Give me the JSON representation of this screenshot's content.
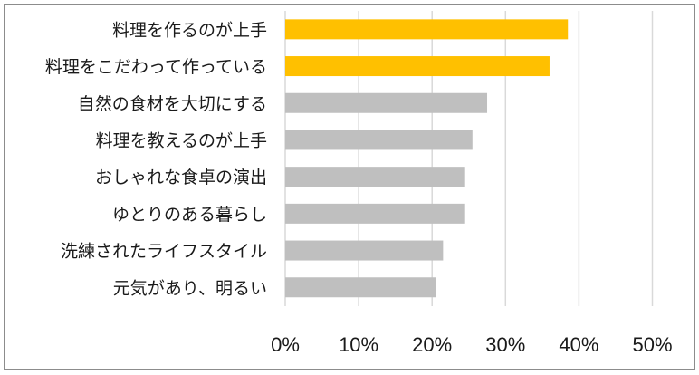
{
  "chart_data": {
    "type": "bar",
    "orientation": "horizontal",
    "categories": [
      "料理を作るのが上手",
      "料理をこだわって作っている",
      "自然の食材を大切にする",
      "料理を教えるのが上手",
      "おしゃれな食卓の演出",
      "ゆとりのある暮らし",
      "洗練されたライフスタイル",
      "元気があり、明るい"
    ],
    "values": [
      38.5,
      36.0,
      27.5,
      25.5,
      24.5,
      24.5,
      21.5,
      20.5
    ],
    "bar_colors": [
      "#ffc000",
      "#ffc000",
      "#bfbfbf",
      "#bfbfbf",
      "#bfbfbf",
      "#bfbfbf",
      "#bfbfbf",
      "#bfbfbf"
    ],
    "xlim": [
      0,
      50
    ],
    "xticks": [
      0,
      10,
      20,
      30,
      40,
      50
    ],
    "xtick_labels": [
      "0%",
      "10%",
      "20%",
      "30%",
      "40%",
      "50%"
    ],
    "grid": true,
    "title": "",
    "xlabel": "",
    "ylabel": ""
  }
}
